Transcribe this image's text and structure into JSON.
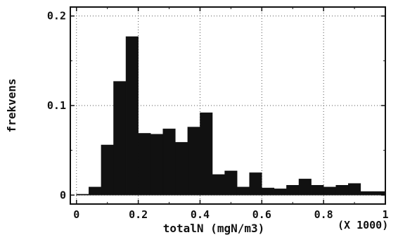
{
  "chart_data": {
    "type": "bar",
    "xlabel": "totalN (mgN/m3)",
    "ylabel": "frekvens",
    "x_multiplier": "(X 1000)",
    "xlim": [
      -0.02,
      1.0
    ],
    "ylim": [
      -0.01,
      0.21
    ],
    "x_ticks": [
      0,
      0.2,
      0.4,
      0.6,
      0.8,
      1
    ],
    "x_tick_labels": [
      "0",
      "0.2",
      "0.4",
      "0.6",
      "0.8",
      "1"
    ],
    "y_ticks": [
      0,
      0.1,
      0.2
    ],
    "y_tick_labels": [
      "0",
      "0.1",
      "0.2"
    ],
    "grid": true,
    "bin_width": 0.04,
    "bin_starts": [
      0.0,
      0.04,
      0.08,
      0.12,
      0.16,
      0.2,
      0.24,
      0.28,
      0.32,
      0.36,
      0.4,
      0.44,
      0.48,
      0.52,
      0.56,
      0.6,
      0.64,
      0.68,
      0.72,
      0.76,
      0.8,
      0.84,
      0.88,
      0.92,
      0.96
    ],
    "values": [
      0.001,
      0.009,
      0.056,
      0.127,
      0.177,
      0.069,
      0.068,
      0.074,
      0.059,
      0.076,
      0.092,
      0.023,
      0.027,
      0.009,
      0.025,
      0.008,
      0.007,
      0.011,
      0.018,
      0.011,
      0.009,
      0.011,
      0.013,
      0.004,
      0.004
    ],
    "bar_color": "#111111"
  }
}
